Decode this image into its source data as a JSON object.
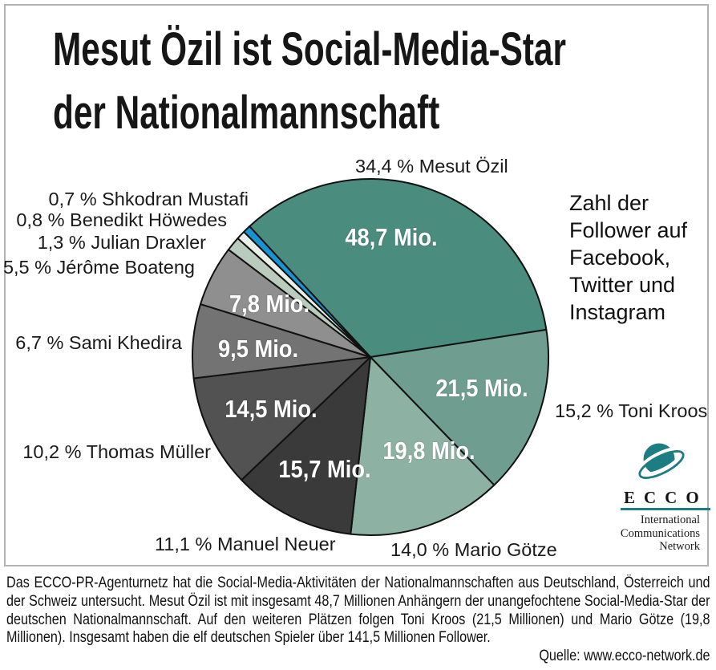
{
  "title": {
    "line1": "Mesut Özil ist Social-Media-Star",
    "line2": "der Nationalmannschaft"
  },
  "annotation": "Zahl der\nFollower auf\nFacebook,\nTwitter und\nInstagram",
  "chart_data": {
    "type": "pie",
    "title": "Mesut Özil ist Social-Media-Star der Nationalmannschaft",
    "note": "Zahl der Follower auf Facebook, Twitter und Instagram",
    "unit": "Mio. Follower",
    "direction": "clockwise",
    "start_angle_deg": -42.8,
    "stroke_color": "#111111",
    "slices": [
      {
        "id": "oezil",
        "player": "Mesut Özil",
        "pct": 34.4,
        "followers_mio": 48.7,
        "pct_label": "34,4 % Mesut Özil",
        "value_label": "48,7 Mio.",
        "color": "#4A8C7E"
      },
      {
        "id": "kroos",
        "player": "Toni Kroos",
        "pct": 15.2,
        "followers_mio": 21.5,
        "pct_label": "15,2 % Toni Kroos",
        "value_label": "21,5 Mio.",
        "color": "#6F9E90"
      },
      {
        "id": "goetze",
        "player": "Mario Götze",
        "pct": 14.0,
        "followers_mio": 19.8,
        "pct_label": "14,0 % Mario Götze",
        "value_label": "19,8 Mio.",
        "color": "#8DB2A4"
      },
      {
        "id": "neuer",
        "player": "Manuel Neuer",
        "pct": 11.1,
        "followers_mio": 15.7,
        "pct_label": "11,1 % Manuel Neuer",
        "value_label": "15,7 Mio.",
        "color": "#3A3A3A"
      },
      {
        "id": "mueller",
        "player": "Thomas Müller",
        "pct": 10.2,
        "followers_mio": 14.5,
        "pct_label": "10,2 % Thomas Müller",
        "value_label": "14,5 Mio.",
        "color": "#525252"
      },
      {
        "id": "khedira",
        "player": "Sami Khedira",
        "pct": 6.7,
        "followers_mio": 9.5,
        "pct_label": "6,7 % Sami Khedira",
        "value_label": "9,5 Mio.",
        "color": "#737373"
      },
      {
        "id": "boateng",
        "player": "Jérôme Boateng",
        "pct": 5.5,
        "followers_mio": 7.8,
        "pct_label": "5,5 % Jérôme Boateng",
        "value_label": "7,8 Mio.",
        "color": "#8F8F8F"
      },
      {
        "id": "draxler",
        "player": "Julian Draxler",
        "pct": 1.3,
        "pct_label": "1,3 % Julian Draxler",
        "color": "#B8CBBD"
      },
      {
        "id": "hoewedes",
        "player": "Benedikt Höwedes",
        "pct": 0.8,
        "pct_label": "0,8 % Benedikt Höwedes",
        "color": "#EAEFE8"
      },
      {
        "id": "mustafi",
        "player": "Shkodran Mustafi",
        "pct": 0.7,
        "pct_label": "0,7 % Shkodran Mustafi",
        "color": "#1693D0"
      }
    ]
  },
  "logo": {
    "wordmark": "ECCO",
    "subtitle": "International\nCommunications\nNetwork",
    "teal": "#1C7D83"
  },
  "footer": {
    "paragraph": "Das ECCO-PR-Agenturnetz hat die Social-Media-Aktivitäten der Nationalmannschaften aus Deutschland, Österreich und der Schweiz untersucht. Mesut Özil ist mit insgesamt 48,7 Millionen Anhängern der unangefochtene Social-Media-Star der deutschen Nationalmannschaft. Auf den weiteren Plätzen folgen Toni Kroos (21,5 Millionen) und Mario Götze (19,8 Millionen). Insgesamt haben die elf deutschen Spieler über 141,5 Millionen Follower.",
    "source": "Quelle: www.ecco-network.de"
  }
}
